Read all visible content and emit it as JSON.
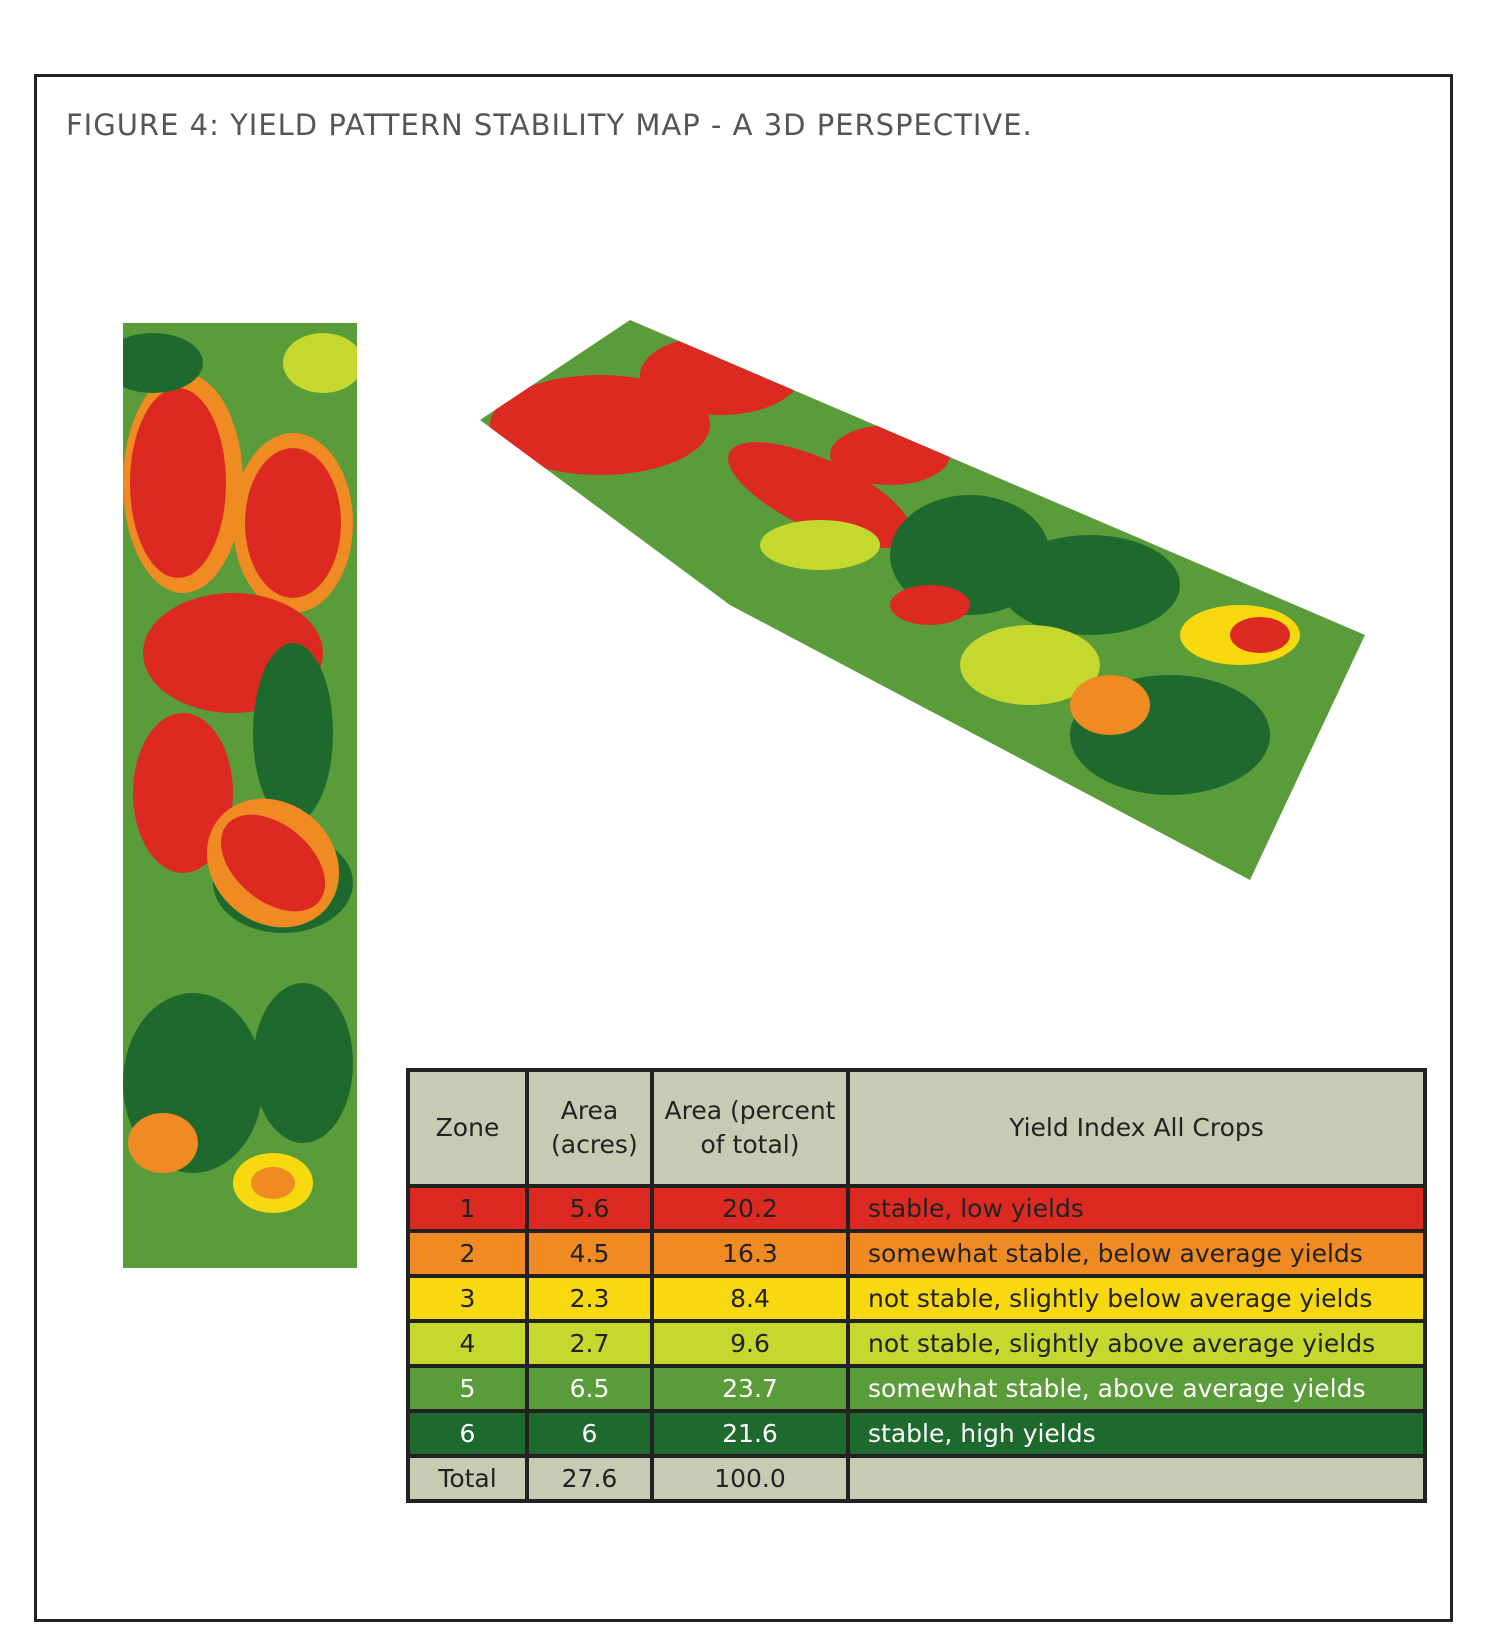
{
  "title": "FIGURE 4: YIELD PATTERN STABILITY MAP - A 3D PERSPECTIVE.",
  "table": {
    "header": [
      "Zone",
      "Area (acres)",
      "Area (percent of total)",
      "Yield Index All Crops"
    ],
    "rows": [
      {
        "color": "#dc2a22",
        "cells": [
          "1",
          "5.6",
          "20.2",
          "stable, low yields"
        ]
      },
      {
        "color": "#f08a23",
        "cells": [
          "2",
          "4.5",
          "16.3",
          "somewhat stable, below average yields"
        ]
      },
      {
        "color": "#f8d80e",
        "cells": [
          "3",
          "2.3",
          "8.4",
          "not stable, slightly below average yields"
        ]
      },
      {
        "color": "#c4d82e",
        "cells": [
          "4",
          "2.7",
          "9.6",
          "not stable, slightly above average yields"
        ]
      },
      {
        "color": "#5a9c3a",
        "cells": [
          "5",
          "6.5",
          "23.7",
          "somewhat stable, above average yields"
        ]
      },
      {
        "color": "#1e6a2e",
        "cells": [
          "6",
          "6",
          "21.6",
          "stable, high yields"
        ]
      },
      {
        "color": "#c9cab4",
        "cells": [
          "Total",
          "27.6",
          "100.0",
          ""
        ]
      }
    ]
  }
}
